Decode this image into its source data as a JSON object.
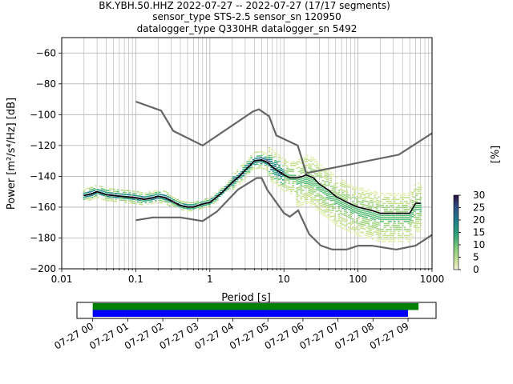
{
  "title": {
    "line1": "BK.YBH.50.HHZ   2022-07-27 -- 2022-07-27  (17/17 segments)",
    "line2": "sensor_type STS-2.5 sensor_sn 120950",
    "line3": "datalogger_type Q330HR datalogger_sn 5492"
  },
  "colors": {
    "noise_model": "#666666",
    "mode_curve": "#000000",
    "coverage_green": "#008000",
    "coverage_blue": "#0000ff",
    "grid": "#b0b0b0"
  },
  "chart_data": [
    {
      "type": "line",
      "title": "",
      "xlabel": "Period [s]",
      "ylabel": "Power [m²/s⁴/Hz] [dB]",
      "xscale": "log",
      "xlim": [
        0.01,
        1000
      ],
      "ylim": [
        -200,
        -50
      ],
      "xticks": [
        0.01,
        0.1,
        1,
        10,
        100,
        1000
      ],
      "xtick_labels": [
        "0.01",
        "0.1",
        "1",
        "10",
        "100",
        "1000"
      ],
      "yticks": [
        -200,
        -180,
        -160,
        -140,
        -120,
        -100,
        -80,
        -60
      ],
      "ytick_labels": [
        "−200",
        "−180",
        "−160",
        "−140",
        "−120",
        "−100",
        "−80",
        "−60"
      ],
      "grid": true,
      "series": [
        {
          "role": "high-noise-model",
          "x": [
            0.1,
            0.22,
            0.32,
            0.8,
            3.8,
            4.6,
            6.3,
            7.9,
            15.4,
            20,
            354.8,
            1000
          ],
          "y": [
            -91.5,
            -97.4,
            -110.5,
            -120,
            -98,
            -96.5,
            -101,
            -113.5,
            -120,
            -138,
            -126,
            -112
          ]
        },
        {
          "role": "low-noise-model",
          "x": [
            0.1,
            0.17,
            0.4,
            0.8,
            1.24,
            2.4,
            4.3,
            5,
            6,
            10,
            12,
            15.6,
            21.9,
            31.6,
            45,
            70,
            101,
            154,
            328,
            600,
            1000
          ],
          "y": [
            -168.5,
            -166.7,
            -166.7,
            -169,
            -163,
            -148.6,
            -141.1,
            -141.1,
            -149,
            -163.8,
            -166.2,
            -162.1,
            -177.5,
            -185,
            -187.5,
            -187.5,
            -185,
            -185,
            -187.5,
            -185,
            -178
          ]
        },
        {
          "role": "mode",
          "x": [
            0.02,
            0.025,
            0.03,
            0.035,
            0.04,
            0.05,
            0.06,
            0.08,
            0.1,
            0.13,
            0.17,
            0.2,
            0.25,
            0.3,
            0.4,
            0.5,
            0.6,
            0.8,
            1,
            1.2,
            1.5,
            2,
            2.5,
            3,
            3.5,
            4,
            5,
            6,
            7,
            8,
            10,
            12,
            15,
            18,
            20,
            25,
            30,
            40,
            50,
            60,
            80,
            100,
            150,
            200,
            300,
            400,
            500,
            600,
            700
          ],
          "y": [
            -152.5,
            -151.5,
            -150,
            -151,
            -152,
            -152.5,
            -153,
            -153.5,
            -154,
            -155,
            -154,
            -153,
            -154,
            -156,
            -159,
            -160,
            -160,
            -158,
            -157,
            -154,
            -150,
            -144,
            -140,
            -136,
            -133,
            -130,
            -129.5,
            -131,
            -134,
            -136,
            -139,
            -141,
            -141,
            -140,
            -139,
            -141,
            -145,
            -149,
            -153,
            -155,
            -158,
            -160,
            -162,
            -164,
            -164,
            -164,
            -164,
            -157.5,
            -157.5
          ]
        }
      ],
      "histogram": {
        "colorbar_label": "[%]",
        "colorbar_ticks": [
          0,
          5,
          10,
          15,
          20,
          25,
          30
        ],
        "colorbar_range": [
          0,
          30
        ],
        "colormap": "pqlx"
      }
    },
    {
      "type": "timeline",
      "xlabel_ticks": [
        "07-27 00",
        "07-27 01",
        "07-27 02",
        "07-27 03",
        "07-27 04",
        "07-27 05",
        "07-27 06",
        "07-27 07",
        "07-27 08",
        "07-27 09"
      ],
      "bars": [
        {
          "color": "green",
          "start_hour": 0,
          "end_hour": 9.3
        },
        {
          "color": "blue",
          "start_hour": 0,
          "end_hour": 9.0
        }
      ],
      "xlim_hours": [
        -0.45,
        9.8
      ]
    }
  ]
}
